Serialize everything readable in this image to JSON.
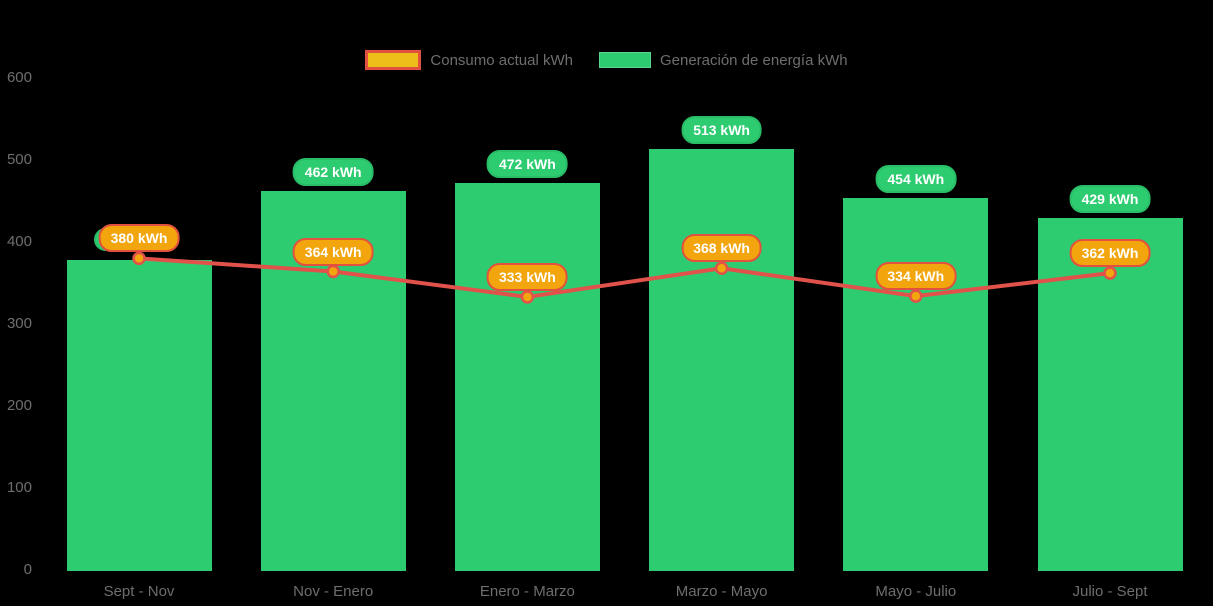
{
  "legend": {
    "items": [
      {
        "label": "Consumo actual kWh",
        "type": "line",
        "swatch_fill": "#edbd1a",
        "swatch_border": "#e2503f"
      },
      {
        "label": "Generación de energía kWh",
        "type": "bar",
        "swatch_fill": "#2ecc71",
        "swatch_border": "#58d68d"
      }
    ]
  },
  "colors": {
    "background": "#000000",
    "bar_fill": "#2ecc71",
    "bar_pill_border": "#29bd68",
    "line_stroke": "#e0524a",
    "marker_fill": "#f2a50c",
    "line_pill_fill": "#f2a50c",
    "line_pill_border": "#e2503f",
    "axis_text": "#6e6e6e",
    "pill_text": "#ffffff"
  },
  "chart_data": {
    "type": "bar",
    "subtype": "bar-with-line-overlay",
    "categories": [
      "Sept - Nov",
      "Nov - Enero",
      "Enero - Marzo",
      "Marzo - Mayo",
      "Mayo - Julio",
      "Julio - Sept"
    ],
    "series": [
      {
        "name": "Generación de energía kWh",
        "type": "bar",
        "color": "#2ecc71",
        "values": [
          378,
          462,
          472,
          513,
          454,
          429
        ],
        "labels": [
          "",
          "462 kWh",
          "472 kWh",
          "513 kWh",
          "454 kWh",
          "429 kWh"
        ],
        "note": "first bar label hidden behind the line's 380 kWh label"
      },
      {
        "name": "Consumo actual kWh",
        "type": "line",
        "color": "#e0524a",
        "values": [
          380,
          364,
          333,
          368,
          334,
          362
        ],
        "labels": [
          "380 kWh",
          "364 kWh",
          "333 kWh",
          "368 kWh",
          "334 kWh",
          "362 kWh"
        ]
      }
    ],
    "ylim": [
      0,
      600
    ],
    "yticks": [
      0,
      100,
      200,
      300,
      400,
      500,
      600
    ],
    "grid": false,
    "legend_position": "top-center",
    "title": "",
    "xlabel": "",
    "ylabel": ""
  }
}
